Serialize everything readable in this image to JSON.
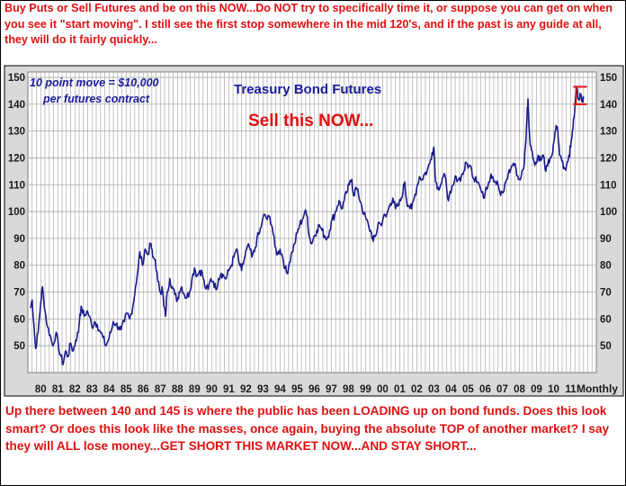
{
  "top_note": "Buy Puts or Sell Futures and be on this NOW...Do NOT try to specifically time it, or suppose you can get on when you see it \"start moving\". I still see the first stop somewhere in the mid 120's, and if the past is any guide at all, they will do it fairly quickly...",
  "bottom_note": "Up there between 140 and 145 is where the public has been LOADING up on bond funds. Does this look smart? Or does this look like the masses, once again, buying the absolute TOP of another market? I say they will ALL lose money...GET SHORT THIS MARKET NOW...AND STAY SHORT...",
  "chart_data": {
    "type": "line",
    "title": "Treasury Bond Futures",
    "subtitle": "Sell this NOW...",
    "annotation": "10 point move = $10,000 per futures contract",
    "annotation_lines": [
      "10 point move = $10,000",
      "per futures contract"
    ],
    "xlabel": "Monthly",
    "ylabel": "",
    "ylim": [
      40,
      152
    ],
    "y_ticks": [
      50,
      60,
      70,
      80,
      90,
      100,
      110,
      120,
      130,
      140,
      150
    ],
    "x_tick_labels": [
      "80",
      "81",
      "82",
      "83",
      "84",
      "85",
      "86",
      "87",
      "88",
      "89",
      "90",
      "91",
      "92",
      "93",
      "94",
      "95",
      "96",
      "97",
      "98",
      "99",
      "00",
      "01",
      "02",
      "03",
      "04",
      "05",
      "06",
      "07",
      "08",
      "09",
      "10",
      "11"
    ],
    "grid": true,
    "series": [
      {
        "color": "#1a1a8c",
        "points": [
          [
            1979.9,
            64
          ],
          [
            1980.0,
            67
          ],
          [
            1980.1,
            58
          ],
          [
            1980.2,
            49
          ],
          [
            1980.35,
            55
          ],
          [
            1980.5,
            66
          ],
          [
            1980.6,
            72
          ],
          [
            1980.75,
            63
          ],
          [
            1980.9,
            57
          ],
          [
            1981.05,
            54
          ],
          [
            1981.2,
            50
          ],
          [
            1981.4,
            55
          ],
          [
            1981.55,
            49
          ],
          [
            1981.7,
            46
          ],
          [
            1981.8,
            43
          ],
          [
            1981.95,
            48
          ],
          [
            1982.1,
            46
          ],
          [
            1982.25,
            51
          ],
          [
            1982.4,
            48
          ],
          [
            1982.55,
            52
          ],
          [
            1982.7,
            55
          ],
          [
            1982.8,
            62
          ],
          [
            1982.9,
            64
          ],
          [
            1983.05,
            61
          ],
          [
            1983.2,
            63
          ],
          [
            1983.35,
            61
          ],
          [
            1983.5,
            57
          ],
          [
            1983.65,
            59
          ],
          [
            1983.8,
            58
          ],
          [
            1984.0,
            55
          ],
          [
            1984.15,
            53
          ],
          [
            1984.3,
            50
          ],
          [
            1984.45,
            52
          ],
          [
            1984.6,
            55
          ],
          [
            1984.75,
            59
          ],
          [
            1984.9,
            58
          ],
          [
            1985.05,
            57
          ],
          [
            1985.2,
            56
          ],
          [
            1985.4,
            59
          ],
          [
            1985.55,
            62
          ],
          [
            1985.7,
            60
          ],
          [
            1985.9,
            65
          ],
          [
            1986.05,
            72
          ],
          [
            1986.2,
            79
          ],
          [
            1986.3,
            85
          ],
          [
            1986.45,
            80
          ],
          [
            1986.6,
            86
          ],
          [
            1986.75,
            84
          ],
          [
            1986.95,
            88
          ],
          [
            1987.05,
            83
          ],
          [
            1987.2,
            82
          ],
          [
            1987.35,
            74
          ],
          [
            1987.5,
            70
          ],
          [
            1987.6,
            72
          ],
          [
            1987.7,
            65
          ],
          [
            1987.8,
            61
          ],
          [
            1987.9,
            70
          ],
          [
            1988.05,
            75
          ],
          [
            1988.2,
            72
          ],
          [
            1988.35,
            69
          ],
          [
            1988.5,
            67
          ],
          [
            1988.6,
            70
          ],
          [
            1988.75,
            72
          ],
          [
            1988.9,
            69
          ],
          [
            1989.05,
            68
          ],
          [
            1989.2,
            70
          ],
          [
            1989.35,
            75
          ],
          [
            1989.5,
            79
          ],
          [
            1989.65,
            76
          ],
          [
            1989.8,
            78
          ],
          [
            1989.95,
            77
          ],
          [
            1990.1,
            72
          ],
          [
            1990.3,
            71
          ],
          [
            1990.45,
            75
          ],
          [
            1990.6,
            74
          ],
          [
            1990.75,
            71
          ],
          [
            1990.9,
            75
          ],
          [
            1991.05,
            77
          ],
          [
            1991.2,
            76
          ],
          [
            1991.35,
            75
          ],
          [
            1991.5,
            78
          ],
          [
            1991.65,
            80
          ],
          [
            1991.8,
            83
          ],
          [
            1991.95,
            86
          ],
          [
            1992.1,
            81
          ],
          [
            1992.25,
            78
          ],
          [
            1992.4,
            82
          ],
          [
            1992.55,
            86
          ],
          [
            1992.7,
            87
          ],
          [
            1992.85,
            83
          ],
          [
            1993.0,
            85
          ],
          [
            1993.15,
            90
          ],
          [
            1993.3,
            92
          ],
          [
            1993.45,
            96
          ],
          [
            1993.6,
            99
          ],
          [
            1993.75,
            97
          ],
          [
            1993.9,
            98
          ],
          [
            1994.05,
            94
          ],
          [
            1994.2,
            87
          ],
          [
            1994.35,
            84
          ],
          [
            1994.5,
            86
          ],
          [
            1994.65,
            83
          ],
          [
            1994.8,
            79
          ],
          [
            1994.9,
            77
          ],
          [
            1995.05,
            81
          ],
          [
            1995.2,
            85
          ],
          [
            1995.35,
            88
          ],
          [
            1995.5,
            92
          ],
          [
            1995.65,
            95
          ],
          [
            1995.8,
            97
          ],
          [
            1995.95,
            100
          ],
          [
            1996.1,
            98
          ],
          [
            1996.2,
            91
          ],
          [
            1996.35,
            88
          ],
          [
            1996.5,
            91
          ],
          [
            1996.65,
            93
          ],
          [
            1996.8,
            95
          ],
          [
            1996.95,
            93
          ],
          [
            1997.1,
            91
          ],
          [
            1997.25,
            90
          ],
          [
            1997.4,
            93
          ],
          [
            1997.55,
            97
          ],
          [
            1997.7,
            99
          ],
          [
            1997.85,
            102
          ],
          [
            1997.95,
            104
          ],
          [
            1998.1,
            101
          ],
          [
            1998.25,
            104
          ],
          [
            1998.4,
            107
          ],
          [
            1998.55,
            110
          ],
          [
            1998.7,
            112
          ],
          [
            1998.8,
            106
          ],
          [
            1998.95,
            109
          ],
          [
            1999.1,
            106
          ],
          [
            1999.25,
            103
          ],
          [
            1999.4,
            99
          ],
          [
            1999.55,
            97
          ],
          [
            1999.7,
            94
          ],
          [
            1999.85,
            92
          ],
          [
            1999.95,
            89
          ],
          [
            2000.1,
            91
          ],
          [
            2000.25,
            96
          ],
          [
            2000.4,
            95
          ],
          [
            2000.55,
            98
          ],
          [
            2000.7,
            98
          ],
          [
            2000.85,
            101
          ],
          [
            2000.95,
            103
          ],
          [
            2001.1,
            105
          ],
          [
            2001.25,
            101
          ],
          [
            2001.4,
            102
          ],
          [
            2001.55,
            104
          ],
          [
            2001.7,
            108
          ],
          [
            2001.8,
            111
          ],
          [
            2001.9,
            104
          ],
          [
            2002.05,
            102
          ],
          [
            2002.2,
            101
          ],
          [
            2002.35,
            105
          ],
          [
            2002.5,
            109
          ],
          [
            2002.65,
            113
          ],
          [
            2002.8,
            112
          ],
          [
            2002.95,
            114
          ],
          [
            2003.1,
            115
          ],
          [
            2003.25,
            118
          ],
          [
            2003.4,
            122
          ],
          [
            2003.5,
            124
          ],
          [
            2003.6,
            111
          ],
          [
            2003.75,
            109
          ],
          [
            2003.9,
            110
          ],
          [
            2004.05,
            113
          ],
          [
            2004.2,
            112
          ],
          [
            2004.35,
            104
          ],
          [
            2004.5,
            107
          ],
          [
            2004.65,
            110
          ],
          [
            2004.8,
            113
          ],
          [
            2004.95,
            112
          ],
          [
            2005.1,
            113
          ],
          [
            2005.25,
            115
          ],
          [
            2005.4,
            118
          ],
          [
            2005.55,
            117
          ],
          [
            2005.7,
            116
          ],
          [
            2005.85,
            112
          ],
          [
            2005.95,
            113
          ],
          [
            2006.1,
            111
          ],
          [
            2006.25,
            108
          ],
          [
            2006.4,
            105
          ],
          [
            2006.55,
            109
          ],
          [
            2006.7,
            111
          ],
          [
            2006.85,
            114
          ],
          [
            2006.95,
            113
          ],
          [
            2007.1,
            111
          ],
          [
            2007.25,
            110
          ],
          [
            2007.4,
            106
          ],
          [
            2007.55,
            107
          ],
          [
            2007.7,
            111
          ],
          [
            2007.85,
            114
          ],
          [
            2008.0,
            116
          ],
          [
            2008.15,
            118
          ],
          [
            2008.3,
            116
          ],
          [
            2008.45,
            112
          ],
          [
            2008.6,
            113
          ],
          [
            2008.75,
            116
          ],
          [
            2008.85,
            124
          ],
          [
            2008.95,
            136
          ],
          [
            2009.0,
            142
          ],
          [
            2009.1,
            128
          ],
          [
            2009.2,
            123
          ],
          [
            2009.35,
            119
          ],
          [
            2009.5,
            118
          ],
          [
            2009.6,
            121
          ],
          [
            2009.75,
            119
          ],
          [
            2009.9,
            121
          ],
          [
            2010.05,
            115
          ],
          [
            2010.15,
            117
          ],
          [
            2010.3,
            120
          ],
          [
            2010.45,
            122
          ],
          [
            2010.55,
            127
          ],
          [
            2010.65,
            132
          ],
          [
            2010.75,
            130
          ],
          [
            2010.85,
            121
          ],
          [
            2010.95,
            120
          ],
          [
            2011.05,
            118
          ],
          [
            2011.15,
            116
          ],
          [
            2011.25,
            117
          ],
          [
            2011.4,
            121
          ],
          [
            2011.5,
            124
          ],
          [
            2011.6,
            130
          ],
          [
            2011.7,
            135
          ],
          [
            2011.8,
            143
          ],
          [
            2011.85,
            146
          ],
          [
            2011.95,
            142
          ],
          [
            2012.05,
            144
          ],
          [
            2012.15,
            141
          ],
          [
            2012.25,
            143
          ]
        ]
      }
    ],
    "sell_zone": {
      "upper": 146.5,
      "lower": 140
    }
  }
}
